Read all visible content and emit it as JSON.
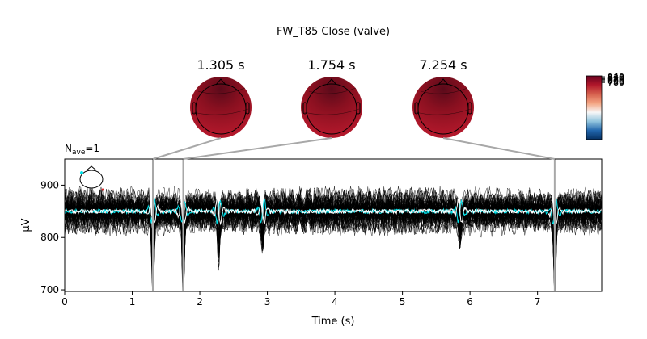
{
  "figure": {
    "title": "FW_T85 Close (valve)",
    "nave_label": "N",
    "nave_subscript": "ave",
    "nave_value": "=1"
  },
  "topomaps": [
    {
      "time_label": "1.305 s",
      "time": 1.305
    },
    {
      "time_label": "1.754 s",
      "time": 1.754
    },
    {
      "time_label": "7.254 s",
      "time": 7.254
    }
  ],
  "colorbar": {
    "tick_labels": [
      "840",
      "830",
      "820",
      "810",
      "800",
      "790",
      "780"
    ],
    "colors": [
      "#053061",
      "#2166ac",
      "#92c5de",
      "#f7f7f7",
      "#f4a582",
      "#d6604d",
      "#b2182b",
      "#67001f"
    ]
  },
  "chart_data": {
    "type": "line",
    "xlabel": "Time (s)",
    "ylabel": "µV",
    "xlim": [
      0,
      7.95
    ],
    "ylim": [
      697,
      950
    ],
    "x_ticks": [
      0,
      1,
      2,
      3,
      4,
      5,
      6,
      7
    ],
    "y_ticks": [
      700,
      800,
      900
    ],
    "grid": false,
    "series": [
      {
        "color": "#000000",
        "baseline": 850,
        "amplitude": 45,
        "count": 60,
        "role": "channel traces"
      },
      {
        "color": "#00e5ee",
        "baseline": 850,
        "role": "highlighted trace"
      },
      {
        "color": "#ffffff",
        "baseline": 850,
        "role": "highlighted trace"
      }
    ],
    "events": [
      {
        "t": 1.305,
        "depth": 700
      },
      {
        "t": 1.754,
        "depth": 697
      },
      {
        "t": 7.254,
        "depth": 705
      },
      {
        "t": 2.28,
        "depth": 770
      },
      {
        "t": 2.93,
        "depth": 785
      },
      {
        "t": 5.85,
        "depth": 795
      }
    ],
    "marker_times": [
      1.305,
      1.754,
      7.254
    ]
  }
}
